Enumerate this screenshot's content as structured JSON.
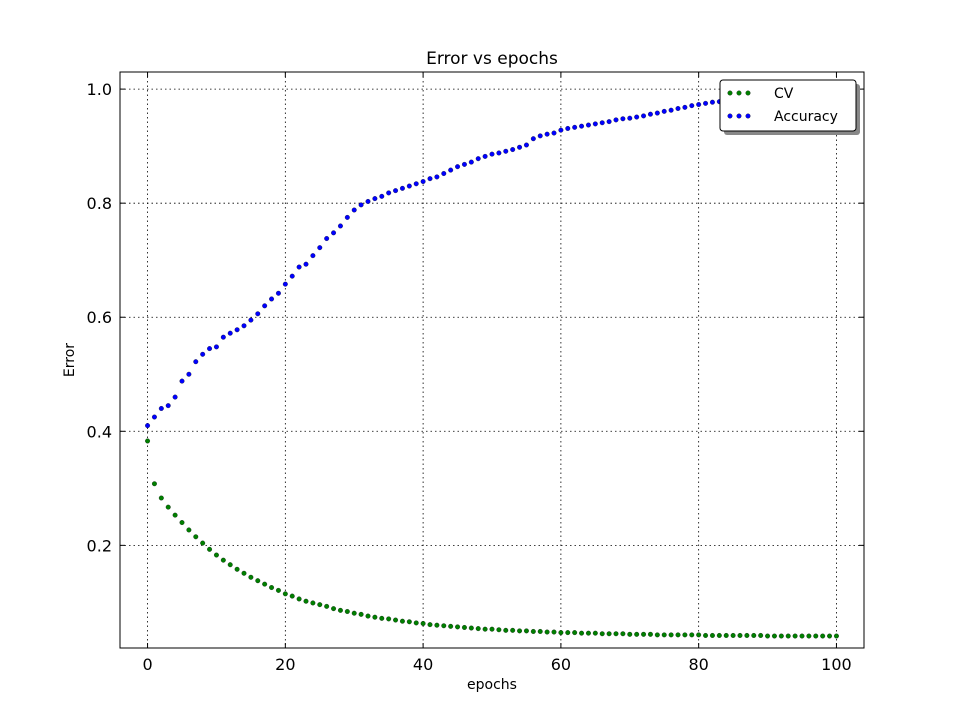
{
  "chart_data": {
    "type": "scatter",
    "title": "Error vs epochs",
    "xlabel": "epochs",
    "ylabel": "Error",
    "xlim": [
      -4,
      104
    ],
    "ylim": [
      0.02,
      1.03
    ],
    "xticks": [
      0,
      20,
      40,
      60,
      80,
      100
    ],
    "yticks": [
      0.2,
      0.4,
      0.6,
      0.8,
      1.0
    ],
    "xtick_labels": [
      "0",
      "20",
      "40",
      "60",
      "80",
      "100"
    ],
    "ytick_labels": [
      "0.2",
      "0.4",
      "0.6",
      "0.8",
      "1.0"
    ],
    "grid": true,
    "legend_position": "top-right",
    "x": [
      0,
      1,
      2,
      3,
      4,
      5,
      6,
      7,
      8,
      9,
      10,
      11,
      12,
      13,
      14,
      15,
      16,
      17,
      18,
      19,
      20,
      21,
      22,
      23,
      24,
      25,
      26,
      27,
      28,
      29,
      30,
      31,
      32,
      33,
      34,
      35,
      36,
      37,
      38,
      39,
      40,
      41,
      42,
      43,
      44,
      45,
      46,
      47,
      48,
      49,
      50,
      51,
      52,
      53,
      54,
      55,
      56,
      57,
      58,
      59,
      60,
      61,
      62,
      63,
      64,
      65,
      66,
      67,
      68,
      69,
      70,
      71,
      72,
      73,
      74,
      75,
      76,
      77,
      78,
      79,
      80,
      81,
      82,
      83,
      84,
      85,
      86,
      87,
      88,
      89,
      90,
      91,
      92,
      93,
      94,
      95,
      96,
      97,
      98,
      99,
      100
    ],
    "series": [
      {
        "name": "CV",
        "color": "#007f00",
        "values": [
          0.383,
          0.308,
          0.283,
          0.267,
          0.253,
          0.24,
          0.227,
          0.215,
          0.204,
          0.193,
          0.183,
          0.174,
          0.166,
          0.158,
          0.151,
          0.144,
          0.138,
          0.132,
          0.126,
          0.121,
          0.115,
          0.111,
          0.106,
          0.102,
          0.099,
          0.096,
          0.093,
          0.089,
          0.086,
          0.084,
          0.081,
          0.079,
          0.076,
          0.074,
          0.072,
          0.071,
          0.069,
          0.067,
          0.066,
          0.064,
          0.063,
          0.061,
          0.06,
          0.059,
          0.058,
          0.057,
          0.056,
          0.055,
          0.054,
          0.053,
          0.053,
          0.052,
          0.051,
          0.051,
          0.05,
          0.05,
          0.049,
          0.049,
          0.048,
          0.048,
          0.047,
          0.047,
          0.047,
          0.046,
          0.046,
          0.046,
          0.045,
          0.045,
          0.045,
          0.045,
          0.044,
          0.044,
          0.044,
          0.044,
          0.043,
          0.043,
          0.043,
          0.043,
          0.043,
          0.043,
          0.043,
          0.042,
          0.042,
          0.042,
          0.042,
          0.042,
          0.042,
          0.042,
          0.042,
          0.042,
          0.041,
          0.041,
          0.041,
          0.041,
          0.041,
          0.041,
          0.041,
          0.041,
          0.041,
          0.041,
          0.041
        ]
      },
      {
        "name": "Accuracy",
        "color": "#0000ff",
        "values": [
          0.41,
          0.425,
          0.44,
          0.445,
          0.46,
          0.488,
          0.5,
          0.522,
          0.535,
          0.545,
          0.548,
          0.565,
          0.572,
          0.578,
          0.585,
          0.595,
          0.606,
          0.62,
          0.632,
          0.642,
          0.658,
          0.672,
          0.688,
          0.693,
          0.708,
          0.722,
          0.738,
          0.748,
          0.76,
          0.775,
          0.788,
          0.797,
          0.803,
          0.808,
          0.812,
          0.818,
          0.822,
          0.826,
          0.83,
          0.834,
          0.838,
          0.843,
          0.846,
          0.852,
          0.858,
          0.864,
          0.868,
          0.872,
          0.878,
          0.882,
          0.886,
          0.888,
          0.891,
          0.894,
          0.898,
          0.902,
          0.913,
          0.918,
          0.921,
          0.923,
          0.928,
          0.931,
          0.933,
          0.935,
          0.937,
          0.939,
          0.941,
          0.943,
          0.946,
          0.948,
          0.949,
          0.951,
          0.953,
          0.956,
          0.958,
          0.961,
          0.963,
          0.966,
          0.968,
          0.971,
          0.973,
          0.975,
          0.977,
          0.978,
          0.98,
          0.981,
          0.983,
          0.984,
          0.985,
          0.987,
          0.988,
          0.989,
          0.99,
          0.991,
          0.992,
          0.993,
          0.994,
          0.995,
          0.996,
          0.997,
          0.998
        ]
      }
    ]
  }
}
